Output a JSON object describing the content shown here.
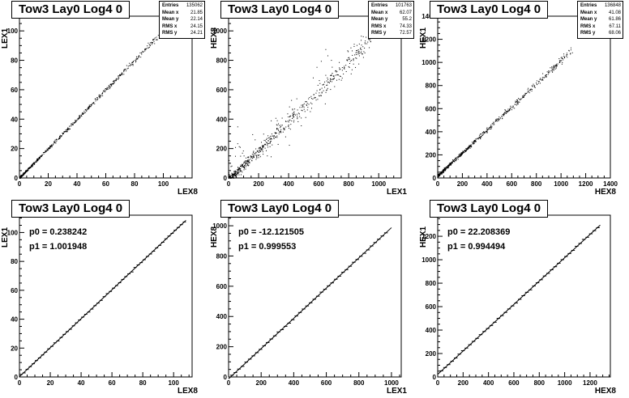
{
  "chart_data": [
    {
      "type": "scatter",
      "title": "Tow3 Lay0 Log4 0",
      "xlabel": "LEX8",
      "ylabel": "LEX1",
      "xlim": [
        0,
        120
      ],
      "ylim": [
        0,
        110
      ],
      "xticks": [
        0,
        20,
        40,
        60,
        80,
        100
      ],
      "yticks": [
        0,
        20,
        40,
        60,
        80,
        100
      ],
      "trend": {
        "slope": 1.0,
        "intercept": 0.24,
        "x_range": [
          0,
          106
        ],
        "spread": 0.6
      },
      "stats": [
        {
          "label": "Entries",
          "value": "135062"
        },
        {
          "label": "Mean x",
          "value": "21.85"
        },
        {
          "label": "Mean y",
          "value": "22.14"
        },
        {
          "label": "RMS x",
          "value": "24.15"
        },
        {
          "label": "RMS y",
          "value": "24.21"
        }
      ]
    },
    {
      "type": "scatter",
      "title": "Tow3 Lay0 Log4 0",
      "xlabel": "LEX1",
      "ylabel": "HEX8",
      "xlim": [
        0,
        1150
      ],
      "ylim": [
        0,
        1100
      ],
      "xticks": [
        0,
        200,
        400,
        600,
        800,
        1000
      ],
      "yticks": [
        0,
        200,
        400,
        600,
        800,
        1000
      ],
      "trend": {
        "slope": 1.0,
        "intercept": -12,
        "x_range": [
          0,
          950
        ],
        "spread": 25
      },
      "stats": [
        {
          "label": "Entries",
          "value": "101763"
        },
        {
          "label": "Mean x",
          "value": "62.07"
        },
        {
          "label": "Mean y",
          "value": "55.2"
        },
        {
          "label": "RMS x",
          "value": "74.33"
        },
        {
          "label": "RMS y",
          "value": "72.57"
        }
      ]
    },
    {
      "type": "scatter",
      "title": "Tow3 Lay0 Log4 0",
      "xlabel": "HEX8",
      "ylabel": "HEX1",
      "xlim": [
        0,
        1400
      ],
      "ylim": [
        0,
        1400
      ],
      "xticks": [
        0,
        200,
        400,
        600,
        800,
        1000,
        1200,
        1400
      ],
      "yticks": [
        0,
        200,
        400,
        600,
        800,
        1000,
        1200,
        1400
      ],
      "trend": {
        "slope": 0.995,
        "intercept": 22,
        "x_range": [
          0,
          1100
        ],
        "spread": 10
      },
      "stats": [
        {
          "label": "Entries",
          "value": "136848"
        },
        {
          "label": "Mean x",
          "value": "41.08"
        },
        {
          "label": "Mean y",
          "value": "61.86"
        },
        {
          "label": "RMS x",
          "value": "67.11"
        },
        {
          "label": "RMS y",
          "value": "68.06"
        }
      ]
    },
    {
      "type": "line",
      "title": "Tow3 Lay0 Log4 0",
      "xlabel": "LEX8",
      "ylabel": "LEX1",
      "xlim": [
        0,
        112
      ],
      "ylim": [
        0,
        112
      ],
      "xticks": [
        0,
        20,
        40,
        60,
        80,
        100
      ],
      "yticks": [
        0,
        20,
        40,
        60,
        80,
        100
      ],
      "fit": {
        "p0": 0.238242,
        "p1": 1.001948,
        "x_range": [
          0,
          108
        ]
      },
      "fit_labels": [
        "p0 = 0.238242",
        "p1 = 1.001948"
      ],
      "profile": {
        "x_start": 1,
        "x_end": 108,
        "step": 2
      }
    },
    {
      "type": "line",
      "title": "Tow3 Lay0 Log4 0",
      "xlabel": "LEX1",
      "ylabel": "HEX8",
      "xlim": [
        0,
        1060
      ],
      "ylim": [
        0,
        1070
      ],
      "xticks": [
        0,
        200,
        400,
        600,
        800,
        1000
      ],
      "yticks": [
        0,
        200,
        400,
        600,
        800,
        1000
      ],
      "fit": {
        "p0": -12.121505,
        "p1": 0.999553,
        "x_range": [
          0,
          1000
        ]
      },
      "fit_labels": [
        "p0 = -12.121505",
        "p1 = 0.999553"
      ],
      "profile": {
        "x_start": 20,
        "x_end": 970,
        "step": 22
      }
    },
    {
      "type": "line",
      "title": "Tow3 Lay0 Log4 0",
      "xlabel": "HEX8",
      "ylabel": "HEX1",
      "xlim": [
        0,
        1360
      ],
      "ylim": [
        0,
        1380
      ],
      "xticks": [
        0,
        200,
        400,
        600,
        800,
        1000,
        1200
      ],
      "yticks": [
        0,
        200,
        400,
        600,
        800,
        1000,
        1200
      ],
      "fit": {
        "p0": 22.208369,
        "p1": 0.994494,
        "x_range": [
          0,
          1280
        ]
      },
      "fit_labels": [
        "p0 = 22.208369",
        "p1 = 0.994494"
      ],
      "profile": {
        "x_start": 30,
        "x_end": 1270,
        "step": 28
      }
    }
  ]
}
